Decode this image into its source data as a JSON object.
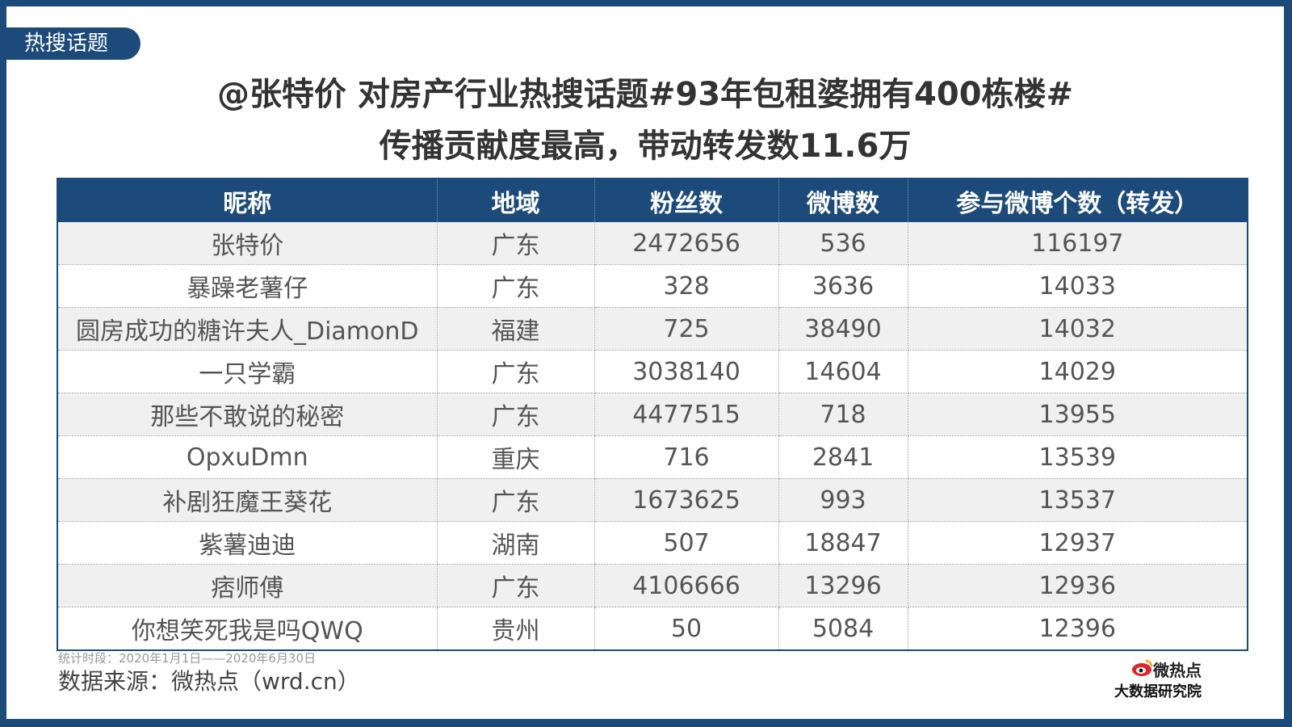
{
  "badge": "热搜话题",
  "title": {
    "line1": "@张特价 对房产行业热搜话题#93年包租婆拥有400栋楼#",
    "line2": "传播贡献度最高，带动转发数11.6万"
  },
  "table": {
    "headers": [
      "昵称",
      "地域",
      "粉丝数",
      "微博数",
      "参与微博个数（转发）"
    ],
    "rows": [
      [
        "张特价",
        "广东",
        "2472656",
        "536",
        "116197"
      ],
      [
        "暴躁老薯仔",
        "广东",
        "328",
        "3636",
        "14033"
      ],
      [
        "圆房成功的糖许夫人_DiamonD",
        "福建",
        "725",
        "38490",
        "14032"
      ],
      [
        "一只学霸",
        "广东",
        "3038140",
        "14604",
        "14029"
      ],
      [
        "那些不敢说的秘密",
        "广东",
        "4477515",
        "718",
        "13955"
      ],
      [
        "OpxuDmn",
        "重庆",
        "716",
        "2841",
        "13539"
      ],
      [
        "补剧狂魔王葵花",
        "广东",
        "1673625",
        "993",
        "13537"
      ],
      [
        "紫薯迪迪",
        "湖南",
        "507",
        "18847",
        "12937"
      ],
      [
        "痞师傅",
        "广东",
        "4106666",
        "13296",
        "12936"
      ],
      [
        "你想笑死我是吗QWQ",
        "贵州",
        "50",
        "5084",
        "12396"
      ]
    ]
  },
  "footer": {
    "period": "统计时段：2020年1月1日——2020年6月30日",
    "source": "数据来源：微热点（wrd.cn）"
  },
  "logo": {
    "brand": "微热点",
    "sub": "大数据研究院",
    "icon": "weibo-eye-icon"
  },
  "colors": {
    "primary": "#1c4a7a",
    "row_alt": "#f0f0f0",
    "title_text": "#333333",
    "logo_red": "#e0242a"
  }
}
